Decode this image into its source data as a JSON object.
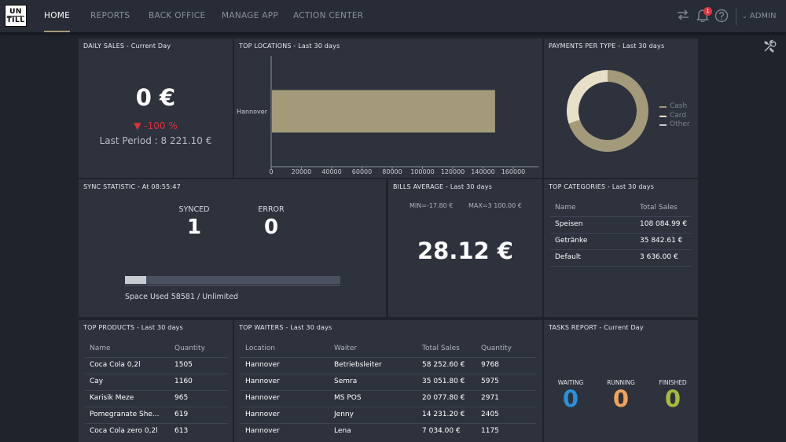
{
  "nav": {
    "logo_line1": "UN",
    "logo_line2": "TILL",
    "items": [
      "HOME",
      "REPORTS",
      "BACK OFFICE",
      "MANAGE APP",
      "ACTION CENTER"
    ],
    "notifications_count": "1",
    "user": "ADMIN",
    "icons": [
      "sync-arrows-icon",
      "bell-icon",
      "help-icon",
      "chevron-down-icon",
      "tools-icon"
    ]
  },
  "daily_sales": {
    "title": "DAILY SALES - Current Day",
    "value": "0 €",
    "change": "▼ -100 %",
    "last_period": "Last Period : 8 221.10 €"
  },
  "top_locations": {
    "title": "TOP LOCATIONS - Last 30 days",
    "chart_data": {
      "type": "bar",
      "orientation": "horizontal",
      "categories": [
        "Hannover"
      ],
      "values": [
        148000
      ],
      "xlim": [
        0,
        160000
      ],
      "xticks": [
        "0",
        "20000",
        "40000",
        "60000",
        "80000",
        "100000",
        "120000",
        "140000",
        "160000"
      ],
      "color": "#a39a7a"
    }
  },
  "payments": {
    "title": "PAYMENTS PER TYPE - Last 30 days",
    "chart_data": {
      "type": "pie",
      "donut": true,
      "categories": [
        "Cash",
        "Card",
        "Other"
      ],
      "values": [
        70,
        30,
        0
      ],
      "colors": [
        "#a39a7a",
        "#e8e0c6",
        "#c2c7cf"
      ],
      "legend": "right"
    }
  },
  "sync": {
    "title": "SYNC STATISTIC - At 08:55:47",
    "synced_label": "SYNCED",
    "synced_value": "1",
    "error_label": "ERROR",
    "error_value": "0",
    "space": "Space Used 58581 / Unlimited",
    "progress": 0.1
  },
  "bills": {
    "title": "BILLS AVERAGE - Last 30 days",
    "min": "MIN=-17.80 €",
    "max": "MAX=3 100.00 €",
    "value": "28.12 €"
  },
  "top_categories": {
    "title": "TOP CATEGORIES - Last 30 days",
    "headers": [
      "Name",
      "Total Sales"
    ],
    "rows": [
      [
        "Speisen",
        "108 084.99 €"
      ],
      [
        "Getränke",
        "35 842.61 €"
      ],
      [
        "Default",
        "3 636.00 €"
      ]
    ]
  },
  "top_products": {
    "title": "TOP PRODUCTS - Last 30 days",
    "headers": [
      "Name",
      "Quantity"
    ],
    "rows": [
      [
        "Coca Cola 0,2l",
        "1505"
      ],
      [
        "Cay",
        "1160"
      ],
      [
        "Karisik Meze",
        "965"
      ],
      [
        "Pomegranate She...",
        "619"
      ],
      [
        "Coca Cola zero 0,2l",
        "613"
      ]
    ]
  },
  "top_waiters": {
    "title": "TOP WAITERS - Last 30 days",
    "headers": [
      "Location",
      "Waiter",
      "Total Sales",
      "Quantity"
    ],
    "rows": [
      [
        "Hannover",
        "Betriebsleiter",
        "58 252.60 €",
        "9768"
      ],
      [
        "Hannover",
        "Semra",
        "35 051.80 €",
        "5975"
      ],
      [
        "Hannover",
        "MS POS",
        "20 077.80 €",
        "2971"
      ],
      [
        "Hannover",
        "Jenny",
        "14 231.20 €",
        "2405"
      ],
      [
        "Hannover",
        "Lena",
        "7 034.00 €",
        "1175"
      ]
    ]
  },
  "tasks": {
    "title": "TASKS REPORT - Current Day",
    "items": [
      {
        "label": "WAITING",
        "value": "0",
        "color": "#2d8fd8"
      },
      {
        "label": "RUNNING",
        "value": "0",
        "color": "#f0a45a"
      },
      {
        "label": "FINISHED",
        "value": "0",
        "color": "#a6bb3c"
      }
    ]
  }
}
